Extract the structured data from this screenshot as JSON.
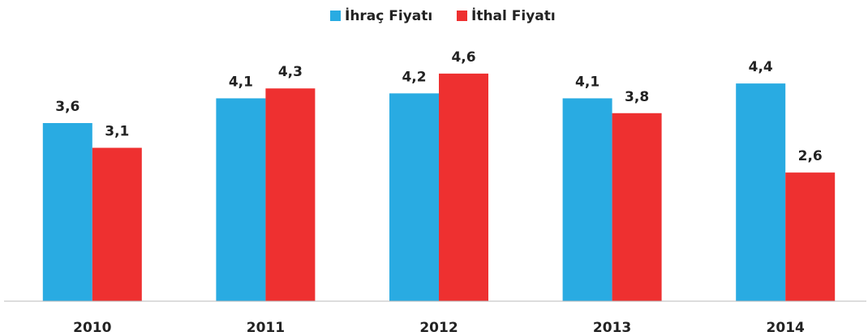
{
  "chart_data": {
    "type": "bar",
    "categories": [
      "2010",
      "2011",
      "2012",
      "2013",
      "2014"
    ],
    "series": [
      {
        "name": "İhraç Fiyatı",
        "color": "#29abe2",
        "values": [
          3.6,
          4.1,
          4.2,
          4.1,
          4.4
        ],
        "value_labels": [
          "3,6",
          "4,1",
          "4,2",
          "4,1",
          "4,4"
        ]
      },
      {
        "name": "İthal Fiyatı",
        "color": "#ee3030",
        "values": [
          3.1,
          4.3,
          4.6,
          3.8,
          2.6
        ],
        "value_labels": [
          "3,1",
          "4,3",
          "4,6",
          "3,8",
          "2,6"
        ]
      }
    ],
    "ylim": [
      0,
      5.4
    ],
    "legend": "top"
  }
}
